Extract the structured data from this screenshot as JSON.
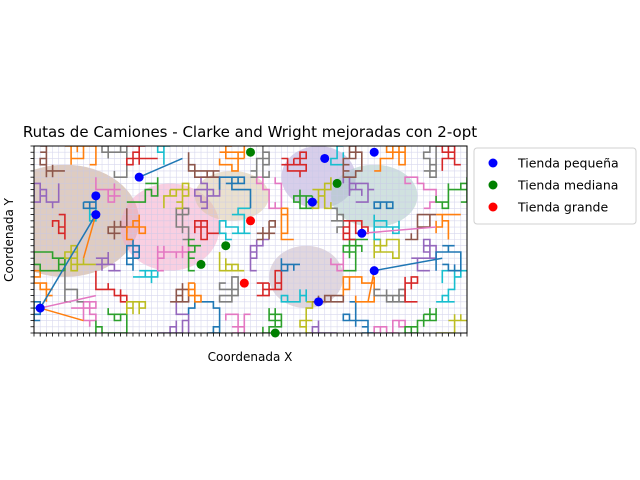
{
  "chart_data": {
    "type": "scatter",
    "title": "Rutas de Camiones - Clarke and Wright mejoradas con 2-opt",
    "xlabel": "Coordenada X",
    "ylabel": "Coordenada Y",
    "xlim": [
      0,
      70
    ],
    "ylim": [
      0,
      30
    ],
    "grid": false,
    "legend_position": "outside-top-right",
    "series": [
      {
        "name": "Tienda pequeña",
        "color": "#0000ff",
        "points": [
          [
            47,
            28
          ],
          [
            55,
            29
          ],
          [
            17,
            25
          ],
          [
            45,
            21
          ],
          [
            10,
            22
          ],
          [
            10,
            19
          ],
          [
            53,
            16
          ],
          [
            55,
            10
          ],
          [
            1,
            4
          ],
          [
            46,
            5
          ]
        ]
      },
      {
        "name": "Tienda mediana",
        "color": "#008000",
        "points": [
          [
            35,
            29
          ],
          [
            49,
            24
          ],
          [
            31,
            14
          ],
          [
            27,
            11
          ],
          [
            39,
            0
          ]
        ]
      },
      {
        "name": "Tienda grande",
        "color": "#ff0000",
        "points": [
          [
            35,
            18
          ],
          [
            34,
            8
          ]
        ]
      }
    ],
    "route_colors": [
      "#1f77b4",
      "#ff7f0e",
      "#2ca02c",
      "#d62728",
      "#9467bd",
      "#8c564b",
      "#e377c2",
      "#7f7f7f",
      "#bcbd22",
      "#17becf"
    ],
    "region_colors": [
      "#c2a38f",
      "#f4a8c8",
      "#b7a6d9",
      "#c9b6c2",
      "#a9c9c4",
      "#d9c7a5"
    ]
  }
}
